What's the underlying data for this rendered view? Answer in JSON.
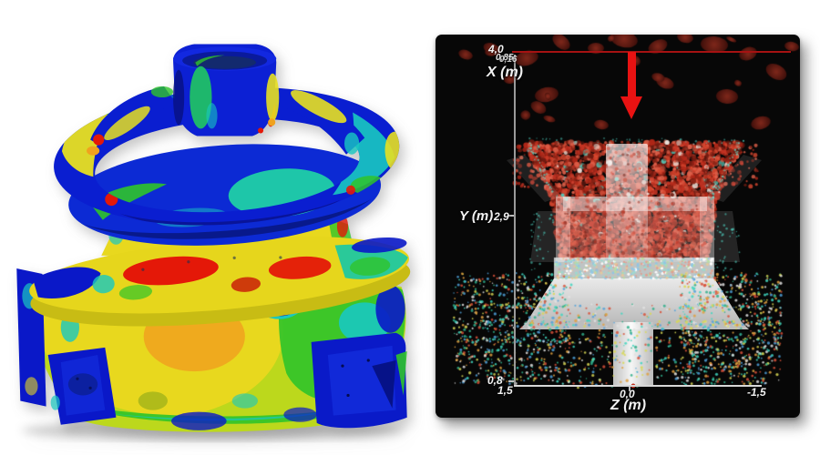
{
  "left_panel": {
    "type": "fea-stress-render",
    "stress_colormap": [
      "#0a18c8",
      "#1228e0",
      "#18c8c0",
      "#2fc42a",
      "#bcd81c",
      "#e8d81e",
      "#f0a21e",
      "#e41808"
    ]
  },
  "right_panel": {
    "type": "dem-particle-simulation",
    "background": "#070707",
    "label_color": "#f2f2f2",
    "axis_color": "#9a9a9a",
    "feed_line_color": "#a61212",
    "arrow_color": "#e81212",
    "rock_color": "#6e2015",
    "feed_particle_colors": [
      "#c63424",
      "#d8472f",
      "#b12718",
      "#e0604a",
      "#8f2517",
      "#6e1a10"
    ],
    "crush_zone_colors": [
      "#9adbd2",
      "#8cc7e8",
      "#e8c89a",
      "#e89a8a",
      "#b8e0a0",
      "#ffffff"
    ],
    "product_particle_colors": [
      "#3fd6c0",
      "#2fae8a",
      "#4fa0d8",
      "#e0a040",
      "#d85038",
      "#d8d855",
      "#e0e0e0"
    ],
    "axes": {
      "x_label": "X (m)",
      "x_top_tick": "4,0",
      "x_overlap_tick_a": "0,85",
      "x_overlap_tick_b": "0,16",
      "y_label": "Y (m)",
      "y_mid_tick": "2,9",
      "y_bottom_tick": "0,8",
      "z_label": "Z (m)",
      "z_tick_left": "1,5",
      "z_tick_center": "0,0",
      "z_tick_right": "-1,5"
    }
  }
}
